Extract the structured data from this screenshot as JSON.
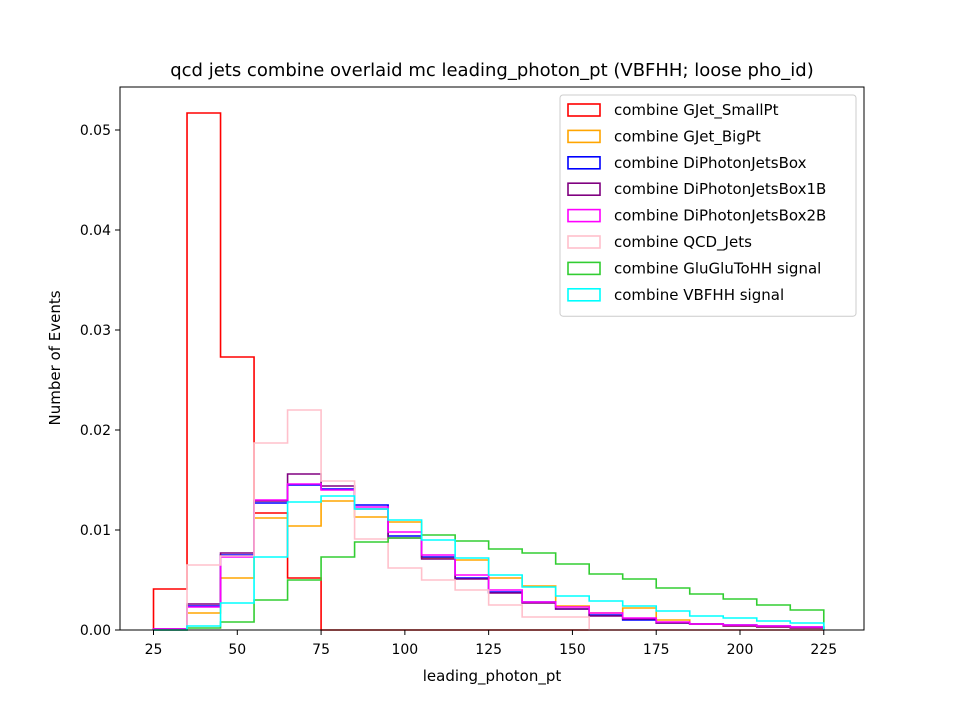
{
  "chart_data": {
    "type": "histogram",
    "title": "qcd jets combine overlaid mc leading_photon_pt (VBFHH; loose pho_id)",
    "xlabel": "leading_photon_pt",
    "ylabel": "Number of Events",
    "xlim": [
      15,
      237
    ],
    "ylim": [
      0,
      0.0543
    ],
    "x_ticks": [
      "25",
      "50",
      "75",
      "100",
      "125",
      "150",
      "175",
      "200",
      "225"
    ],
    "x_tick_values": [
      25,
      50,
      75,
      100,
      125,
      150,
      175,
      200,
      225
    ],
    "y_ticks": [
      "0.00",
      "0.01",
      "0.02",
      "0.03",
      "0.04",
      "0.05"
    ],
    "y_tick_values": [
      0,
      0.01,
      0.02,
      0.03,
      0.04,
      0.05
    ],
    "legend_position": "upper right",
    "bin_edges": [
      25,
      35,
      45,
      55,
      65,
      75,
      85,
      95,
      105,
      115,
      125,
      135,
      145,
      155,
      165,
      175,
      185,
      195,
      205,
      215,
      225
    ],
    "series": [
      {
        "name": "combine GJet_SmallPt",
        "color": "#ff0000",
        "values": [
          0.0041,
          0.0517,
          0.0273,
          0.0117,
          0.0052,
          0.0,
          0.0,
          0.0,
          0.0,
          0.0,
          0.0,
          0.0,
          0.0,
          0.0,
          0.0,
          0.0,
          0.0,
          0.0,
          0.0,
          0.0
        ]
      },
      {
        "name": "combine GJet_BigPt",
        "color": "#ffa500",
        "values": [
          0.0,
          0.0017,
          0.0052,
          0.0112,
          0.0104,
          0.0129,
          0.0113,
          0.0108,
          0.0072,
          0.007,
          0.0052,
          0.0044,
          0.0024,
          0.0017,
          0.0022,
          0.001,
          0.0006,
          0.0004,
          0.0003,
          0.0002
        ]
      },
      {
        "name": "combine DiPhotonJetsBox",
        "color": "#0000ff",
        "values": [
          0.0001,
          0.0024,
          0.0075,
          0.0127,
          0.0145,
          0.0141,
          0.0125,
          0.0094,
          0.0073,
          0.0052,
          0.0038,
          0.0028,
          0.0021,
          0.0015,
          0.001,
          0.0007,
          0.0006,
          0.0005,
          0.0004,
          0.0003
        ]
      },
      {
        "name": "combine DiPhotonJetsBox1B",
        "color": "#800080",
        "values": [
          0.0001,
          0.0026,
          0.0077,
          0.0129,
          0.0156,
          0.0144,
          0.0121,
          0.0092,
          0.0071,
          0.0051,
          0.0037,
          0.0027,
          0.0021,
          0.0014,
          0.0011,
          0.0007,
          0.0006,
          0.0004,
          0.0003,
          0.0002
        ]
      },
      {
        "name": "combine DiPhotonJetsBox2B",
        "color": "#ff00ff",
        "values": [
          0.0001,
          0.0023,
          0.0073,
          0.013,
          0.0146,
          0.014,
          0.0123,
          0.0098,
          0.0075,
          0.0055,
          0.004,
          0.0028,
          0.0023,
          0.0017,
          0.0012,
          0.0008,
          0.0006,
          0.0005,
          0.0004,
          0.0003
        ]
      },
      {
        "name": "combine QCD_Jets",
        "color": "#ffc0cb",
        "values": [
          0.0,
          0.0065,
          0.0074,
          0.0187,
          0.022,
          0.0149,
          0.0091,
          0.0062,
          0.005,
          0.004,
          0.0025,
          0.0013,
          0.0013,
          0.0,
          0.0,
          0.0,
          0.0,
          0.0,
          0.0,
          0.0
        ]
      },
      {
        "name": "combine GluGluToHH signal",
        "color": "#32cd32",
        "values": [
          0.0,
          0.0002,
          0.0008,
          0.003,
          0.005,
          0.0073,
          0.0088,
          0.0092,
          0.0095,
          0.0089,
          0.0081,
          0.0077,
          0.0066,
          0.0056,
          0.0051,
          0.0042,
          0.0036,
          0.0031,
          0.0025,
          0.002
        ]
      },
      {
        "name": "combine VBFHH signal",
        "color": "#00ffff",
        "values": [
          0.0,
          0.0004,
          0.0027,
          0.0073,
          0.0128,
          0.0134,
          0.0121,
          0.011,
          0.009,
          0.0072,
          0.0055,
          0.0043,
          0.0034,
          0.0029,
          0.0024,
          0.0019,
          0.0014,
          0.0012,
          0.0009,
          0.0007
        ]
      }
    ]
  }
}
